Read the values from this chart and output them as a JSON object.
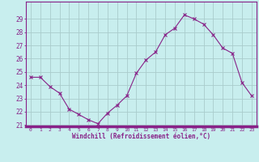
{
  "x": [
    0,
    1,
    2,
    3,
    4,
    5,
    6,
    7,
    8,
    9,
    10,
    11,
    12,
    13,
    14,
    15,
    16,
    17,
    18,
    19,
    20,
    21,
    22,
    23
  ],
  "y": [
    24.6,
    24.6,
    23.9,
    23.4,
    22.2,
    21.8,
    21.4,
    21.1,
    21.9,
    22.5,
    23.2,
    24.9,
    25.9,
    26.5,
    27.8,
    28.3,
    29.3,
    29.0,
    28.6,
    27.8,
    26.8,
    26.4,
    24.2,
    23.2
  ],
  "line_color": "#882288",
  "marker": "x",
  "marker_size": 3,
  "bg_color": "#c8eeee",
  "grid_color": "#aacccc",
  "tick_color": "#882288",
  "xlabel": "Windchill (Refroidissement éolien,°C)",
  "ylim": [
    21,
    30
  ],
  "yticks": [
    21,
    22,
    23,
    24,
    25,
    26,
    27,
    28,
    29
  ]
}
